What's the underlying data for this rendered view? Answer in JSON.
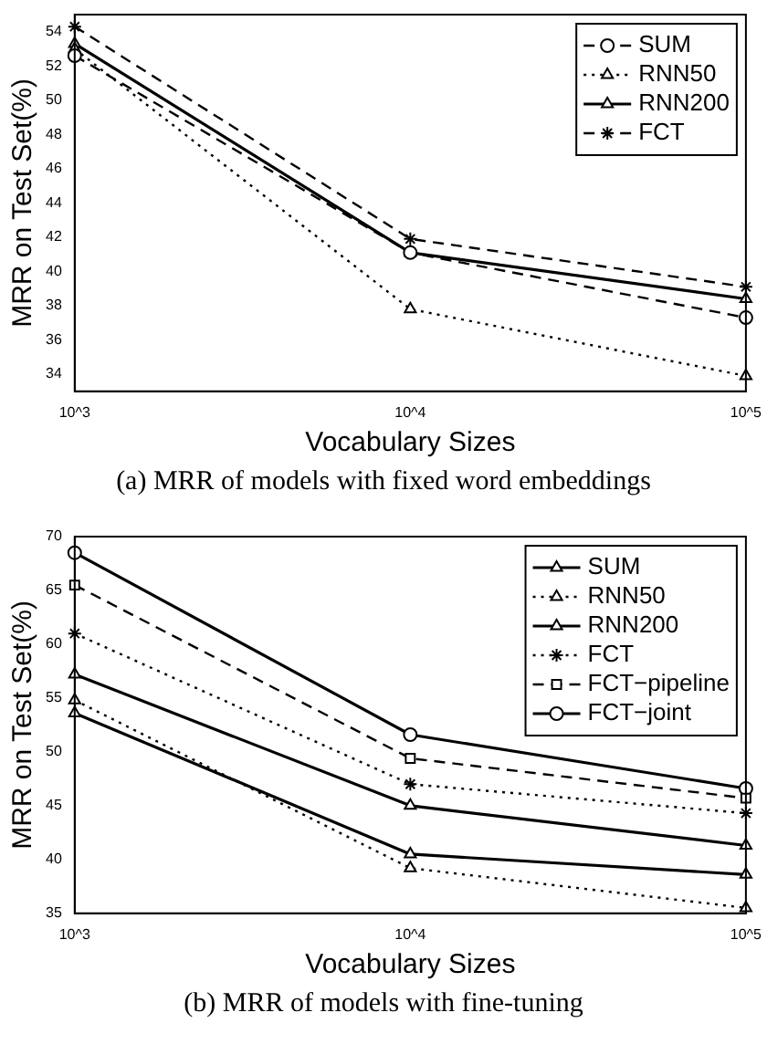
{
  "chart_data": [
    {
      "type": "line",
      "xlabel": "Vocabulary Sizes",
      "ylabel": "MRR on Test Set(%)",
      "annotations": [
        "(a)  MRR of models with fixed word embeddings"
      ],
      "categories": [
        "10^3",
        "10^4",
        "10^5"
      ],
      "ylim": [
        33,
        55
      ],
      "yticks": [
        34,
        36,
        38,
        40,
        42,
        44,
        46,
        48,
        50,
        52,
        54
      ],
      "legend": "top right",
      "grid": false,
      "series": [
        {
          "name": "SUM",
          "color": "#000000",
          "values": [
            52.6,
            41.1,
            37.3
          ],
          "marker": "circle",
          "line_style": "dashed"
        },
        {
          "name": "RNN50",
          "color": "#000000",
          "values": [
            53.0,
            37.8,
            33.9
          ],
          "marker": "triangle",
          "line_style": "dotted"
        },
        {
          "name": "RNN200",
          "color": "#000000",
          "values": [
            53.3,
            41.1,
            38.4
          ],
          "marker": "triangle",
          "line_style": "solid"
        },
        {
          "name": "FCT",
          "color": "#000000",
          "values": [
            54.3,
            41.9,
            39.1
          ],
          "marker": "cross",
          "line_style": "dashed"
        }
      ]
    },
    {
      "type": "line",
      "xlabel": "Vocabulary Sizes",
      "ylabel": "MRR on Test Set(%)",
      "annotations": [
        "(b)  MRR of models with fine-tuning"
      ],
      "categories": [
        "10^3",
        "10^4",
        "10^5"
      ],
      "ylim": [
        35,
        70
      ],
      "yticks": [
        35,
        40,
        45,
        50,
        55,
        60,
        65,
        70
      ],
      "legend": "top right",
      "grid": false,
      "series": [
        {
          "name": "SUM",
          "color": "#000000",
          "values": [
            57.2,
            45.0,
            41.3
          ],
          "marker": "triangle",
          "line_style": "solid"
        },
        {
          "name": "RNN50",
          "color": "#000000",
          "values": [
            54.8,
            39.2,
            35.5
          ],
          "marker": "triangle",
          "line_style": "dotted"
        },
        {
          "name": "RNN200",
          "color": "#000000",
          "values": [
            53.6,
            40.5,
            38.6
          ],
          "marker": "triangle",
          "line_style": "solid"
        },
        {
          "name": "FCT",
          "color": "#000000",
          "values": [
            61.0,
            47.0,
            44.3
          ],
          "marker": "cross",
          "line_style": "dotted"
        },
        {
          "name": "FCT−pipeline",
          "color": "#000000",
          "values": [
            65.5,
            49.4,
            45.7
          ],
          "marker": "square",
          "line_style": "dashed"
        },
        {
          "name": "FCT−joint",
          "color": "#000000",
          "values": [
            68.5,
            51.6,
            46.6
          ],
          "marker": "circle",
          "line_style": "solid"
        }
      ]
    }
  ]
}
